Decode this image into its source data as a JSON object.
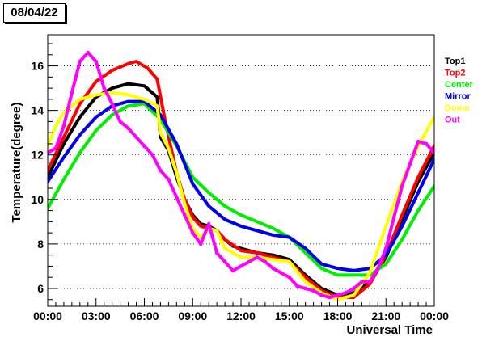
{
  "header": {
    "date_label": "08/04/22"
  },
  "chart_data": {
    "type": "scatter",
    "title": "",
    "xlabel": "Universal Time",
    "ylabel": "Temperature(degree)",
    "xlim": [
      0,
      24
    ],
    "ylim": [
      5.2,
      17.4
    ],
    "grid": "horizontal-dotted",
    "legend_placement": "right",
    "x_ticks": [
      {
        "value": 0,
        "label": "00:00"
      },
      {
        "value": 3,
        "label": "03:00"
      },
      {
        "value": 6,
        "label": "06:00"
      },
      {
        "value": 9,
        "label": "09:00"
      },
      {
        "value": 12,
        "label": "12:00"
      },
      {
        "value": 15,
        "label": "15:00"
      },
      {
        "value": 18,
        "label": "18:00"
      },
      {
        "value": 21,
        "label": "21:00"
      },
      {
        "value": 24,
        "label": "00:00"
      }
    ],
    "y_ticks": [
      {
        "value": 6,
        "label": "6"
      },
      {
        "value": 8,
        "label": "8"
      },
      {
        "value": 10,
        "label": "10"
      },
      {
        "value": 12,
        "label": "12"
      },
      {
        "value": 14,
        "label": "14"
      },
      {
        "value": 16,
        "label": "16"
      }
    ],
    "series": [
      {
        "name": "Top1",
        "color": "#000000",
        "x": [
          0,
          1,
          2,
          3,
          4,
          5,
          6,
          6.8,
          7,
          7.5,
          8,
          8.5,
          9,
          9.5,
          10,
          10.5,
          11,
          11.5,
          12,
          13,
          14,
          15,
          16,
          17,
          18,
          19,
          20,
          21,
          22,
          23,
          24
        ],
        "y": [
          11.0,
          12.5,
          13.7,
          14.6,
          15.0,
          15.2,
          15.1,
          14.6,
          12.8,
          12.2,
          11.0,
          10.0,
          9.3,
          8.9,
          8.8,
          8.6,
          8.2,
          7.9,
          7.8,
          7.6,
          7.5,
          7.3,
          6.6,
          6.0,
          5.7,
          5.8,
          6.3,
          7.4,
          9.1,
          10.8,
          12.1
        ]
      },
      {
        "name": "Top2",
        "color": "#ff0000",
        "x": [
          0,
          1,
          2,
          3,
          4,
          5,
          5.5,
          6.2,
          6.8,
          7.3,
          8,
          8.5,
          9,
          9.5,
          10,
          10.5,
          11,
          12,
          13,
          14,
          15,
          16,
          17,
          18,
          19,
          20,
          21,
          22,
          23,
          24
        ],
        "y": [
          11.3,
          12.8,
          14.3,
          15.3,
          15.8,
          16.1,
          16.2,
          15.9,
          15.4,
          13.5,
          11.2,
          10.0,
          9.2,
          8.8,
          8.7,
          8.6,
          8.2,
          7.7,
          7.6,
          7.4,
          7.2,
          6.5,
          5.9,
          5.6,
          5.6,
          6.2,
          7.5,
          9.3,
          11.0,
          12.4
        ]
      },
      {
        "name": "Center",
        "color": "#00ee00",
        "x": [
          0,
          1,
          2,
          3,
          4,
          5,
          6,
          7,
          8,
          9,
          10,
          11,
          12,
          13,
          14,
          15,
          16,
          17,
          18,
          19,
          20,
          21,
          22,
          23,
          24
        ],
        "y": [
          9.6,
          10.9,
          12.1,
          13.1,
          13.8,
          14.2,
          14.3,
          13.6,
          12.4,
          11.0,
          10.3,
          9.7,
          9.3,
          9.0,
          8.7,
          8.3,
          7.6,
          6.9,
          6.6,
          6.6,
          6.6,
          7.1,
          8.2,
          9.5,
          10.6
        ]
      },
      {
        "name": "Mirror",
        "color": "#0000ee",
        "x": [
          0,
          1,
          2,
          3,
          4,
          5,
          6,
          7,
          8,
          9,
          10,
          11,
          12,
          13,
          14,
          15,
          16,
          17,
          18,
          19,
          20,
          21,
          22,
          23,
          24
        ],
        "y": [
          10.8,
          11.9,
          12.9,
          13.7,
          14.2,
          14.4,
          14.4,
          13.8,
          12.5,
          10.7,
          9.7,
          9.1,
          8.8,
          8.6,
          8.4,
          8.3,
          7.8,
          7.1,
          6.9,
          6.8,
          6.9,
          7.5,
          8.8,
          10.3,
          11.8
        ]
      },
      {
        "name": "Dome",
        "color": "#ffff00",
        "x": [
          0,
          0.5,
          1,
          2,
          3,
          4,
          5,
          6,
          6.8,
          7,
          7.5,
          8,
          8.5,
          9,
          9.5,
          10,
          10.5,
          11,
          12,
          13,
          14,
          15,
          16,
          17,
          18,
          19,
          20,
          21,
          22,
          23,
          24
        ],
        "y": [
          12.4,
          13.3,
          13.9,
          14.5,
          14.7,
          14.8,
          14.7,
          14.5,
          14.2,
          13.0,
          12.3,
          11.2,
          9.8,
          8.7,
          8.3,
          8.7,
          8.6,
          7.8,
          7.4,
          7.4,
          7.3,
          7.2,
          6.3,
          5.8,
          5.5,
          5.7,
          6.7,
          8.8,
          10.8,
          12.4,
          13.7
        ]
      },
      {
        "name": "Out",
        "color": "#ff00ff",
        "x": [
          0,
          0.5,
          1,
          1.5,
          2,
          2.5,
          3,
          3.5,
          4,
          4.5,
          5,
          5.5,
          6,
          6.5,
          7,
          7.5,
          8,
          8.5,
          9,
          9.5,
          10,
          10.5,
          11,
          11.5,
          12,
          12.5,
          13,
          13.5,
          14,
          14.5,
          15,
          15.5,
          16,
          16.5,
          17,
          17.5,
          18,
          18.5,
          19,
          19.5,
          20,
          20.5,
          21,
          21.5,
          22,
          22.5,
          23,
          23.5,
          24
        ],
        "y": [
          12.1,
          12.3,
          13.3,
          14.8,
          16.2,
          16.6,
          16.2,
          15.0,
          14.3,
          13.5,
          13.2,
          12.8,
          12.4,
          12.0,
          11.3,
          10.9,
          10.1,
          9.3,
          8.5,
          8.0,
          8.9,
          7.6,
          7.2,
          6.8,
          7.0,
          7.2,
          7.4,
          7.2,
          6.9,
          6.7,
          6.5,
          6.1,
          6.0,
          5.9,
          5.7,
          5.6,
          5.7,
          5.8,
          6.0,
          6.3,
          6.3,
          6.9,
          7.8,
          9.2,
          10.6,
          11.6,
          12.6,
          12.5,
          12.1
        ]
      }
    ]
  }
}
